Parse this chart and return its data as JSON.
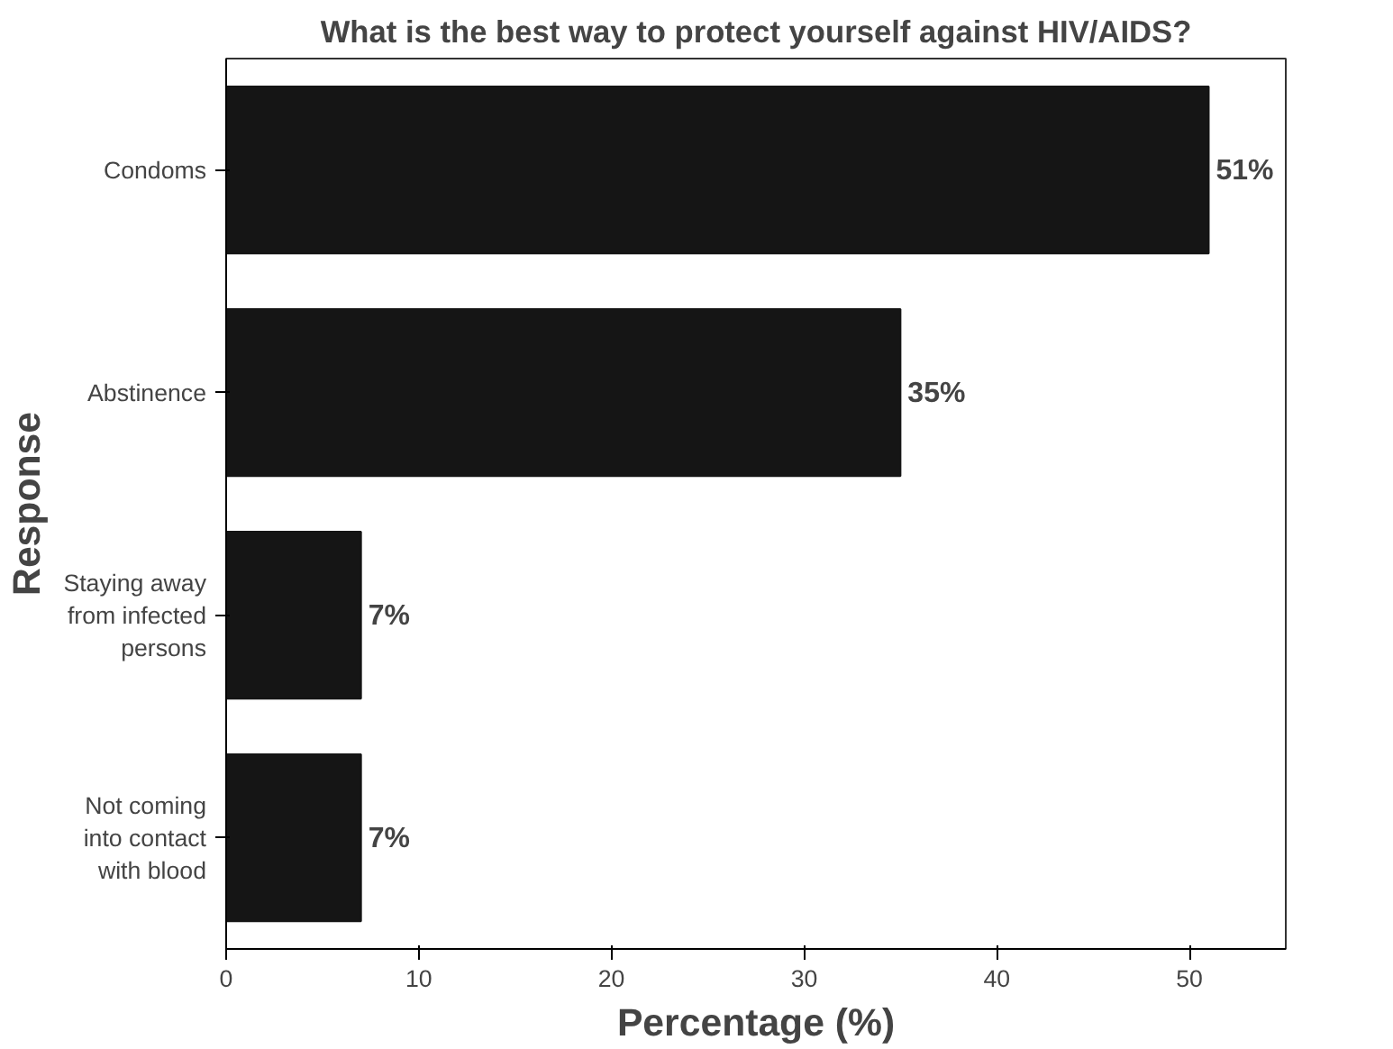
{
  "chart_data": {
    "type": "bar",
    "orientation": "horizontal",
    "title": "What is the best way to protect yourself against HIV/AIDS?",
    "xlabel": "Percentage (%)",
    "ylabel": "Response",
    "categories": [
      "Condoms",
      "Abstinence",
      "Staying away\nfrom infected\npersons",
      "Not coming\ninto contact\nwith blood"
    ],
    "values": [
      51,
      35,
      7,
      7
    ],
    "color": "#151515",
    "value_labels": [
      "51%",
      "35%",
      "7%",
      "7%"
    ],
    "xlim": [
      0,
      55
    ],
    "xticks": [
      0,
      10,
      20,
      30,
      40,
      50
    ],
    "grid": false
  }
}
